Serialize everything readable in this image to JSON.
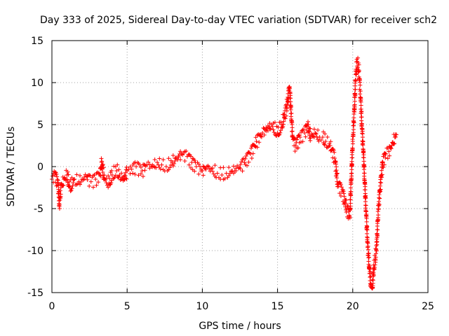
{
  "chart_data": {
    "type": "scatter",
    "title": "Day 333 of 2025, Sidereal Day-to-day VTEC variation (SDTVAR) for receiver sch2",
    "xlabel": "GPS time / hours",
    "ylabel": "SDTVAR / TECUs",
    "xlim": [
      0,
      25
    ],
    "ylim": [
      -15,
      15
    ],
    "xticks": [
      0,
      5,
      10,
      15,
      20,
      25
    ],
    "yticks": [
      -15,
      -10,
      -5,
      0,
      5,
      10,
      15
    ],
    "grid": true,
    "marker": "+",
    "color": "#ff0000",
    "series": [
      {
        "name": "SDTVAR",
        "x": [
          0.0,
          0.2,
          0.4,
          0.5,
          0.6,
          0.8,
          1.0,
          1.2,
          1.5,
          1.8,
          2.0,
          2.3,
          2.6,
          2.9,
          3.2,
          3.3,
          3.5,
          3.8,
          4.0,
          4.3,
          4.5,
          4.8,
          5.0,
          5.3,
          5.6,
          6.0,
          6.3,
          6.6,
          7.0,
          7.3,
          7.6,
          8.0,
          8.3,
          8.6,
          9.0,
          9.3,
          9.6,
          10.0,
          10.3,
          10.6,
          11.0,
          11.3,
          11.6,
          12.0,
          12.4,
          12.8,
          13.2,
          13.6,
          14.0,
          14.3,
          14.6,
          15.0,
          15.3,
          15.6,
          15.8,
          16.0,
          16.2,
          16.5,
          16.8,
          17.0,
          17.2,
          17.5,
          17.8,
          18.0,
          18.2,
          18.5,
          18.8,
          19.0,
          19.3,
          19.6,
          19.8,
          20.0,
          20.1,
          20.2,
          20.3,
          20.4,
          20.5,
          20.6,
          20.7,
          20.8,
          20.9,
          21.0,
          21.1,
          21.2,
          21.3,
          21.4,
          21.5,
          21.6,
          21.7,
          21.8,
          21.9,
          22.0,
          22.2,
          22.4,
          22.6,
          22.8,
          22.9
        ],
        "y": [
          -1.5,
          -1.0,
          -2.0,
          -4.5,
          -2.5,
          -1.5,
          -1.0,
          -2.5,
          -1.5,
          -1.8,
          -1.5,
          -1.2,
          -1.8,
          -1.5,
          -1.0,
          0.5,
          -1.5,
          -2.0,
          -1.0,
          -0.5,
          -1.0,
          -1.5,
          -0.5,
          -0.3,
          0.0,
          -0.5,
          0.2,
          0.0,
          0.5,
          0.2,
          0.0,
          0.5,
          1.0,
          1.5,
          1.2,
          0.5,
          0.0,
          -0.5,
          0.0,
          -0.3,
          -0.8,
          -1.0,
          -0.8,
          -0.5,
          -0.2,
          0.5,
          1.5,
          3.0,
          4.0,
          4.5,
          5.0,
          4.0,
          5.0,
          7.0,
          9.5,
          3.5,
          2.5,
          3.5,
          4.0,
          5.0,
          3.5,
          4.0,
          3.5,
          3.5,
          3.0,
          2.5,
          1.0,
          -2.0,
          -3.0,
          -5.0,
          -6.0,
          3.0,
          6.5,
          11.0,
          12.5,
          11.5,
          9.0,
          5.0,
          2.0,
          -2.0,
          -6.0,
          -9.5,
          -12.0,
          -14.0,
          -14.5,
          -12.0,
          -11.0,
          -9.0,
          -5.0,
          -3.0,
          -1.0,
          0.5,
          1.5,
          1.8,
          2.5,
          3.5,
          3.8
        ]
      }
    ]
  }
}
